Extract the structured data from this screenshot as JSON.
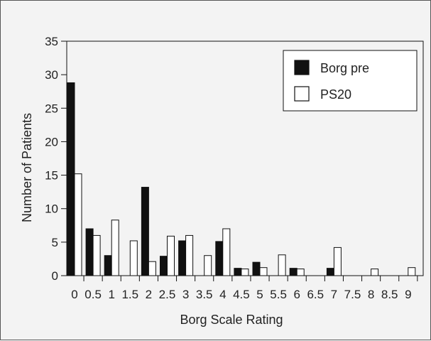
{
  "chart_data": {
    "type": "bar",
    "title": "",
    "xlabel": "Borg Scale Rating",
    "ylabel": "Number of Patients",
    "ylim": [
      0,
      35
    ],
    "yticks": [
      0,
      5,
      10,
      15,
      20,
      25,
      30,
      35
    ],
    "categories": [
      "0",
      "0.5",
      "1",
      "1.5",
      "2",
      "2.5",
      "3",
      "3.5",
      "4",
      "4.5",
      "5",
      "5.5",
      "6",
      "6.5",
      "7",
      "7.5",
      "8",
      "8.5",
      "9"
    ],
    "series": [
      {
        "name": "Borg pre",
        "color": "#111111",
        "values": [
          28.8,
          7,
          3,
          0,
          13.2,
          2.9,
          5.2,
          0,
          5.1,
          1.1,
          2,
          0,
          1.1,
          0,
          1.1,
          0,
          0,
          0,
          0
        ]
      },
      {
        "name": "PS20",
        "color": "#ffffff",
        "values": [
          15.2,
          6,
          8.3,
          5.2,
          2.1,
          5.9,
          6,
          3,
          7,
          1,
          1.2,
          3.1,
          1,
          0,
          4.2,
          0,
          1,
          0,
          1.2
        ]
      }
    ],
    "legend_position": "top-right",
    "grid": false
  }
}
